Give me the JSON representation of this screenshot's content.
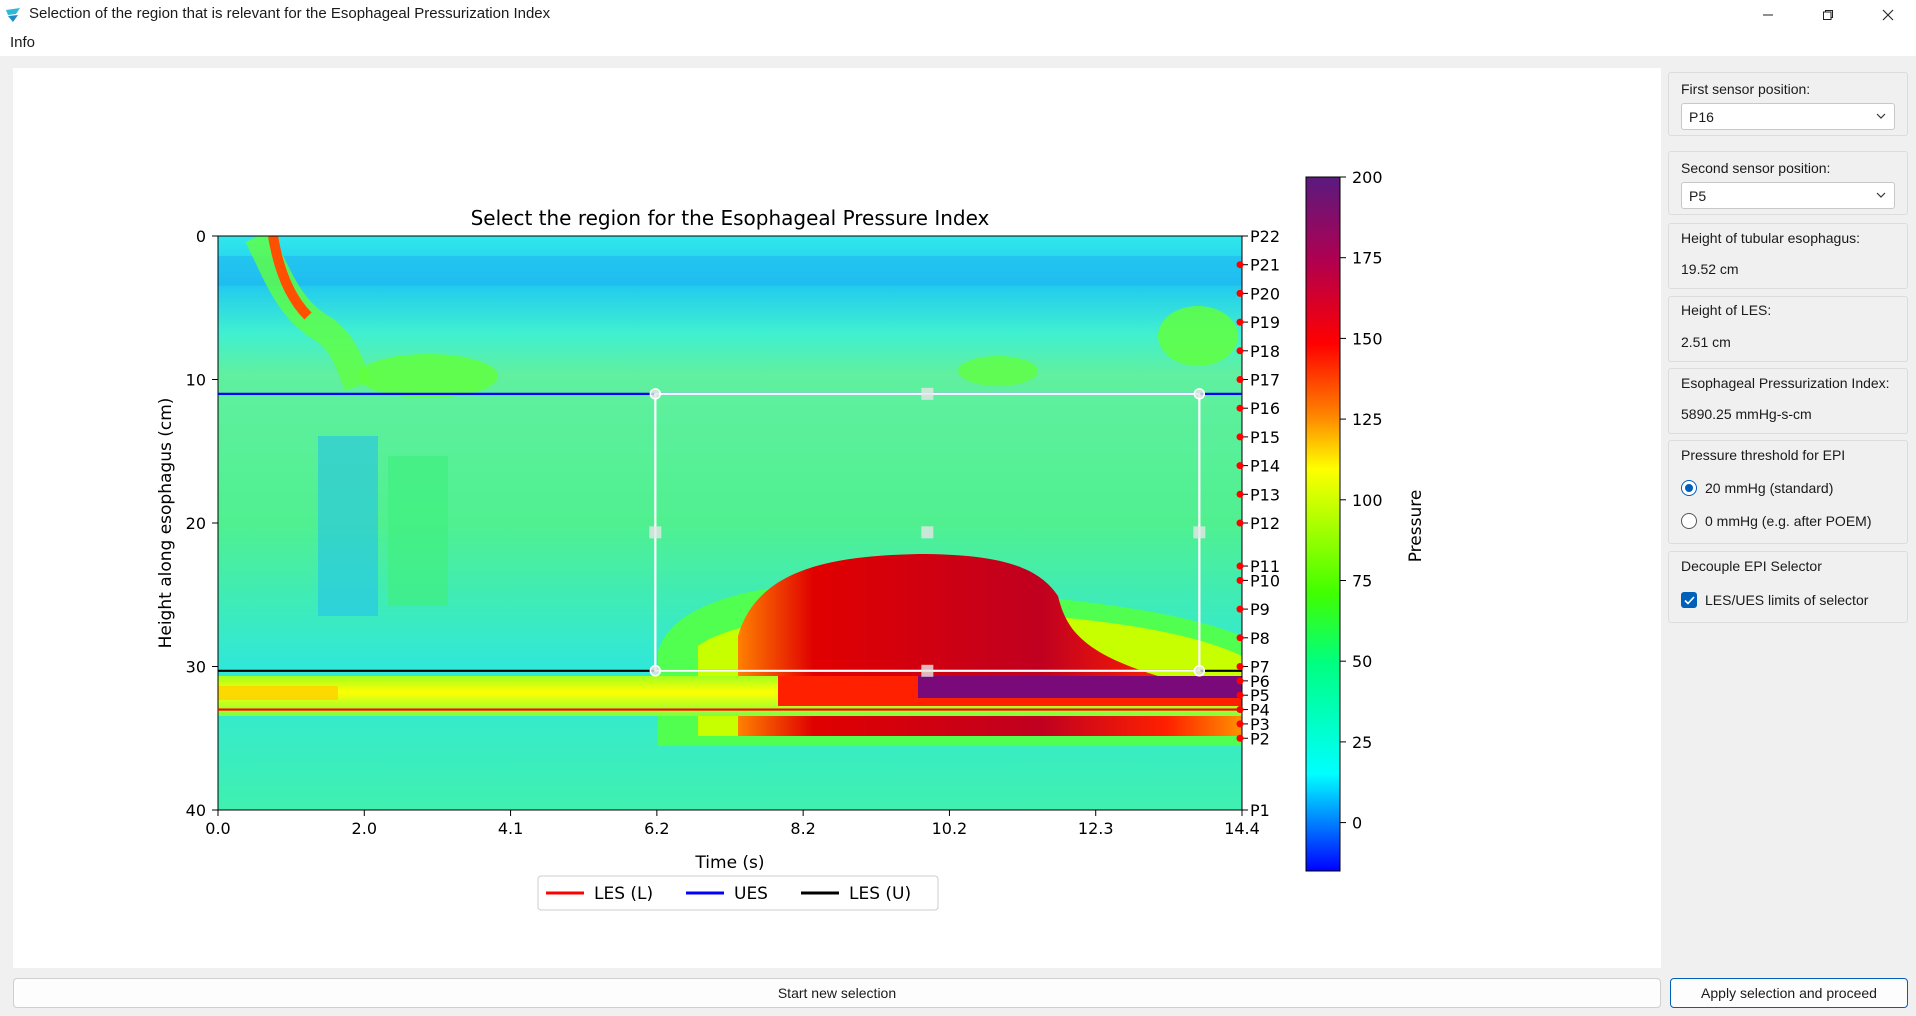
{
  "window": {
    "title": "Selection of the region that is relevant for the Esophageal Pressurization Index",
    "app_icon": "app-logo-icon",
    "controls": [
      "minimize-icon",
      "maximize-icon",
      "close-icon"
    ]
  },
  "menu": {
    "items": [
      "Info"
    ]
  },
  "chart_data": {
    "type": "heatmap",
    "title": "Select the region for the Esophageal Pressure Index",
    "xlabel": "Time (s)",
    "ylabel": "Height along esophagus (cm)",
    "xlim": [
      0.0,
      14.4
    ],
    "ylim": [
      40,
      0
    ],
    "xticks": [
      "0.0",
      "2.0",
      "4.1",
      "6.2",
      "8.2",
      "10.2",
      "12.3",
      "14.4"
    ],
    "yticks": [
      "0",
      "10",
      "20",
      "30",
      "40"
    ],
    "sensors": [
      {
        "label": "P22",
        "y": 0.0
      },
      {
        "label": "P21",
        "y": 2.0
      },
      {
        "label": "P20",
        "y": 4.0
      },
      {
        "label": "P19",
        "y": 6.0
      },
      {
        "label": "P18",
        "y": 8.0
      },
      {
        "label": "P17",
        "y": 10.0
      },
      {
        "label": "P16",
        "y": 12.0
      },
      {
        "label": "P15",
        "y": 14.0
      },
      {
        "label": "P14",
        "y": 16.0
      },
      {
        "label": "P13",
        "y": 18.0
      },
      {
        "label": "P12",
        "y": 20.0
      },
      {
        "label": "P11",
        "y": 23.0
      },
      {
        "label": "P10",
        "y": 24.0
      },
      {
        "label": "P9",
        "y": 26.0
      },
      {
        "label": "P8",
        "y": 28.0
      },
      {
        "label": "P7",
        "y": 30.0
      },
      {
        "label": "P6",
        "y": 31.0
      },
      {
        "label": "P5",
        "y": 32.0
      },
      {
        "label": "P4",
        "y": 33.0
      },
      {
        "label": "P3",
        "y": 34.0
      },
      {
        "label": "P2",
        "y": 35.0
      },
      {
        "label": "P1",
        "y": 40.0
      }
    ],
    "lines": [
      {
        "name": "LES (L)",
        "y": 33.0,
        "color": "#ff0000"
      },
      {
        "name": "UES",
        "y": 11.0,
        "color": "#0000ff"
      },
      {
        "name": "LES (U)",
        "y": 30.3,
        "color": "#000000"
      }
    ],
    "selection": {
      "x0": 6.15,
      "x1": 13.8,
      "y0": 11.0,
      "y1": 30.3
    },
    "colorbar": {
      "label": "Pressure",
      "min": -15,
      "max": 200,
      "ticks": [
        "0",
        "25",
        "50",
        "75",
        "100",
        "125",
        "150",
        "175",
        "200"
      ]
    },
    "legend": {
      "placement": "bottom-center",
      "entries": [
        "LES (L)",
        "UES",
        "LES (U)"
      ]
    }
  },
  "side": {
    "first_sensor_label": "First sensor position:",
    "first_sensor_value": "P16",
    "second_sensor_label": "Second sensor position:",
    "second_sensor_value": "P5",
    "tubular_label": "Height of tubular esophagus:",
    "tubular_value": "19.52 cm",
    "les_label": "Height of LES:",
    "les_value": "2.51 cm",
    "epi_label": "Esophageal Pressurization Index:",
    "epi_value": "5890.25 mmHg-s-cm",
    "threshold_label": "Pressure threshold for EPI",
    "threshold_opt1": "20 mmHg (standard)",
    "threshold_opt2": "0 mmHg (e.g. after POEM)",
    "decouple_label": "Decouple EPI Selector",
    "decouple_check": "LES/UES limits of selector"
  },
  "buttons": {
    "new_selection": "Start new selection",
    "apply": "Apply selection and proceed"
  }
}
